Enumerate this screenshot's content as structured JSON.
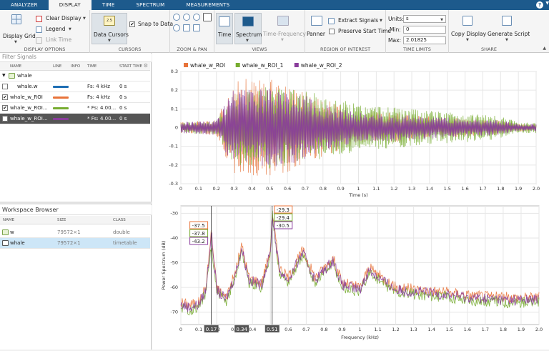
{
  "tabs": [
    "ANALYZER",
    "DISPLAY",
    "TIME",
    "SPECTRUM",
    "MEASUREMENTS"
  ],
  "help_label": "?",
  "ribbon": {
    "display_grid": "Display Grid",
    "clear_display": "Clear Display",
    "legend": "Legend",
    "link_time": "Link Time",
    "display_options": "DISPLAY OPTIONS",
    "data_cursors": "Data Cursors",
    "snap_to_data": "Snap to Data",
    "cursors": "CURSORS",
    "zoom_pan": "ZOOM & PAN",
    "time": "Time",
    "spectrum": "Spectrum",
    "time_frequency": "Time-Frequency",
    "views": "VIEWS",
    "panner": "Panner",
    "extract_signals": "Extract Signals",
    "preserve_start_time": "Preserve Start Time",
    "region_of_interest": "REGION OF INTEREST",
    "units_label": "Units:",
    "units_value": "s",
    "min_label": "Min:",
    "min_value": "0",
    "max_label": "Max:",
    "max_value": "2.01825",
    "time_limits": "TIME LIMITS",
    "copy_display": "Copy Display",
    "generate_script": "Generate Script",
    "share": "SHARE"
  },
  "filter_placeholder": "Filter Signals",
  "signal_table": {
    "headers": [
      "NAME",
      "LINE",
      "INFO",
      "TIME",
      "START TIME"
    ],
    "rows": [
      {
        "name": "whale",
        "checked": "",
        "line": "",
        "time": "",
        "start": "",
        "color": ""
      },
      {
        "name": "whale.w",
        "checked": "",
        "line": "#1f6fb4",
        "time": "Fs: 4 kHz",
        "start": "0 s",
        "color": "#1f6fb4"
      },
      {
        "name": "whale_w_ROI",
        "checked": "✔",
        "line": "#e8743b",
        "time": "Fs: 4 kHz",
        "start": "0 s",
        "color": "#e8743b"
      },
      {
        "name": "whale_w_ROI...",
        "checked": "✔",
        "line": "#77ac30",
        "time": "* Fs: 4.00...",
        "start": "0 s",
        "color": "#77ac30"
      },
      {
        "name": "whale_w_ROI...",
        "checked": "✔",
        "line": "#8a3d9c",
        "time": "* Fs: 4.00...",
        "start": "0 s",
        "color": "#8a3d9c"
      }
    ]
  },
  "workspace": {
    "title": "Workspace Browser",
    "headers": [
      "NAME",
      "SIZE",
      "CLASS"
    ],
    "rows": [
      {
        "name": "w",
        "size": "79572×1",
        "class": "double"
      },
      {
        "name": "whale",
        "size": "79572×1",
        "class": "timetable"
      }
    ]
  },
  "colors": {
    "orange": "#e8743b",
    "green": "#77ac30",
    "purple": "#8a3d9c",
    "blue": "#1f6fb4",
    "tab_blue": "#1d5a8c"
  },
  "chart_data": [
    {
      "type": "line",
      "title": "",
      "xlabel": "Time (s)",
      "ylabel": "",
      "xlim": [
        0,
        2.0
      ],
      "ylim": [
        -0.3,
        0.3
      ],
      "x_ticks": [
        "0",
        "0.1",
        "0.2",
        "0.3",
        "0.4",
        "0.5",
        "0.6",
        "0.7",
        "0.8",
        "0.9",
        "1",
        "1.1",
        "1.2",
        "1.3",
        "1.4",
        "1.5",
        "1.6",
        "1.7",
        "1.8",
        "1.9",
        "2.0"
      ],
      "y_ticks": [
        "0.3",
        "0.2",
        "0.1",
        "0",
        "-0.1",
        "-0.2",
        "-0.3"
      ],
      "legend": [
        "whale_w_ROI",
        "whale_w_ROI_1",
        "whale_w_ROI_2"
      ],
      "grid": true,
      "envelope": {
        "x": [
          0,
          0.2,
          0.25,
          0.3,
          0.4,
          0.5,
          0.6,
          0.7,
          0.8,
          0.9,
          1.0,
          1.2,
          1.4,
          1.6,
          1.8,
          1.9,
          2.0
        ],
        "orange": [
          0.03,
          0.04,
          0.15,
          0.25,
          0.27,
          0.26,
          0.24,
          0.2,
          0.16,
          0.12,
          0.09,
          0.08,
          0.06,
          0.05,
          0.04,
          0.02,
          0.02
        ],
        "green": [
          0.03,
          0.04,
          0.12,
          0.2,
          0.22,
          0.22,
          0.22,
          0.2,
          0.17,
          0.15,
          0.13,
          0.11,
          0.09,
          0.08,
          0.06,
          0.03,
          0.03
        ],
        "purple": [
          0.03,
          0.04,
          0.14,
          0.21,
          0.2,
          0.21,
          0.2,
          0.17,
          0.13,
          0.1,
          0.08,
          0.07,
          0.06,
          0.05,
          0.04,
          0.02,
          0.02
        ]
      }
    },
    {
      "type": "line",
      "title": "",
      "xlabel": "Frequency (kHz)",
      "ylabel": "Power Spectrum (dB)",
      "xlim": [
        0,
        2.0
      ],
      "ylim": [
        -75,
        -27
      ],
      "x_ticks": [
        "0",
        "0.1",
        "0.2",
        "0.3",
        "0.4",
        "0.5",
        "0.6",
        "0.7",
        "0.8",
        "0.9",
        "1",
        "1.1",
        "1.2",
        "1.3",
        "1.4",
        "1.5",
        "1.6",
        "1.7",
        "1.8",
        "1.9",
        "2.0"
      ],
      "y_ticks": [
        "-30",
        "-40",
        "-50",
        "-60",
        "-70"
      ],
      "grid": true,
      "baseline": {
        "x": [
          0,
          0.05,
          0.1,
          0.14,
          0.17,
          0.2,
          0.25,
          0.3,
          0.34,
          0.38,
          0.45,
          0.5,
          0.51,
          0.55,
          0.6,
          0.68,
          0.75,
          0.85,
          0.9,
          1.0,
          1.05,
          1.2,
          1.35,
          1.5,
          1.6,
          1.8,
          2.0
        ],
        "orange": [
          -66,
          -67,
          -66,
          -60,
          -37.5,
          -60,
          -64,
          -55,
          -43,
          -56,
          -58,
          -45,
          -29.3,
          -52,
          -56,
          -45,
          -56,
          -48,
          -58,
          -60,
          -52,
          -60,
          -61,
          -62,
          -63,
          -64,
          -64
        ],
        "green": [
          -68,
          -69,
          -68,
          -62,
          -43.2,
          -62,
          -66,
          -57,
          -45,
          -58,
          -60,
          -47,
          -29.4,
          -54,
          -58,
          -47,
          -58,
          -50,
          -60,
          -62,
          -54,
          -62,
          -63,
          -64,
          -65,
          -66,
          -66
        ],
        "purple": [
          -67,
          -68,
          -67,
          -61,
          -37.8,
          -61,
          -65,
          -56,
          -44,
          -57,
          -59,
          -46,
          -30.5,
          -53,
          -57,
          -46,
          -57,
          -49,
          -59,
          -61,
          -53,
          -61,
          -62,
          -63,
          -64,
          -65,
          -65
        ]
      },
      "cursors": [
        {
          "x": 0.17,
          "label": "0.17",
          "tips": [
            "-37.5",
            "-37.8",
            "-43.2"
          ]
        },
        {
          "x": 0.51,
          "label": "0.51",
          "tips": [
            "-29.3",
            "-29.4",
            "-30.5"
          ]
        }
      ],
      "extra_marker": {
        "x": 0.34,
        "label": "0.34"
      }
    }
  ]
}
